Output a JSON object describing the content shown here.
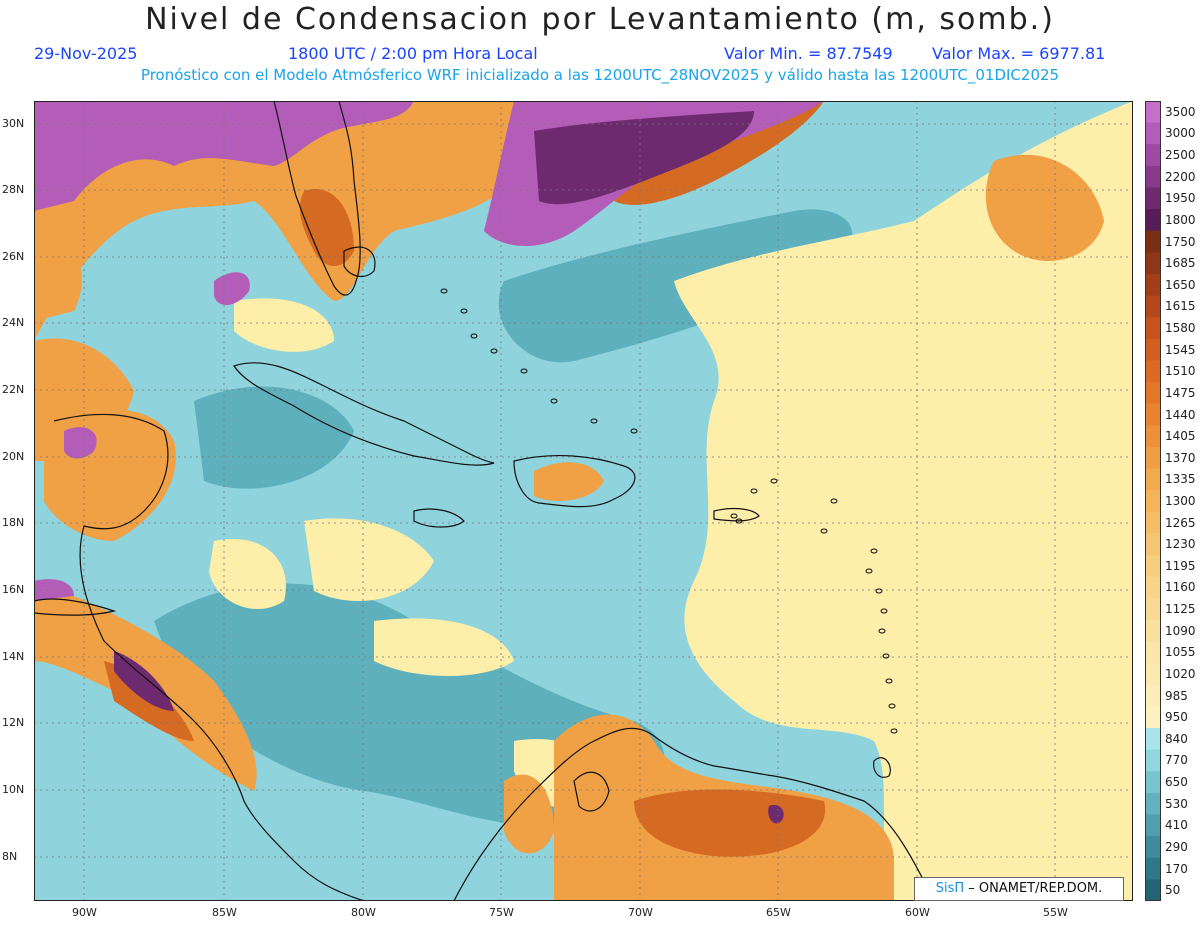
{
  "header": {
    "title": "Nivel de Condensacion por Levantamiento (m, somb.)",
    "date": "29-Nov-2025",
    "time": "1800 UTC / 2:00 pm Hora Local",
    "valmin": "Valor Min. = 87.7549",
    "valmax": "Valor Max. = 6977.81",
    "model_info": "Pronóstico con el Modelo Atmósferico WRF inicializado a las 1200UTC_28NOV2025 y válido hasta las  1200UTC_01DIC2025"
  },
  "axes": {
    "lon_labels": [
      "90W",
      "85W",
      "80W",
      "75W",
      "70W",
      "65W",
      "60W",
      "55W"
    ],
    "lat_labels": [
      "30N",
      "28N",
      "26N",
      "24N",
      "22N",
      "20N",
      "18N",
      "16N",
      "14N",
      "12N",
      "10N",
      "8N"
    ]
  },
  "colorbar": {
    "labels": [
      "3500",
      "3000",
      "2500",
      "2200",
      "1950",
      "1800",
      "1750",
      "1685",
      "1650",
      "1615",
      "1580",
      "1545",
      "1510",
      "1475",
      "1440",
      "1405",
      "1370",
      "1335",
      "1300",
      "1265",
      "1230",
      "1195",
      "1160",
      "1125",
      "1090",
      "1055",
      "1020",
      "985",
      "950",
      "840",
      "770",
      "650",
      "530",
      "410",
      "290",
      "170",
      "50"
    ],
    "colors": [
      "#c66fc8",
      "#b45db8",
      "#9e4aa3",
      "#873a8a",
      "#6e2a6f",
      "#571c58",
      "#7a2e14",
      "#8e3616",
      "#a33f18",
      "#b5481a",
      "#c6531c",
      "#d25e1f",
      "#db6a24",
      "#e2772a",
      "#e88431",
      "#ec9139",
      "#ef9e43",
      "#f2aa4e",
      "#f4b45a",
      "#f5bd66",
      "#f6c572",
      "#f7cd7e",
      "#f8d489",
      "#f9da94",
      "#fae09e",
      "#fbe5a8",
      "#fce9b0",
      "#fdedb8",
      "#fef1c0",
      "#a7e5ea",
      "#90d6de",
      "#78c4cf",
      "#62b2bf",
      "#4f9fae",
      "#3e8c9c",
      "#2f7888",
      "#236474"
    ],
    "colors_are_bottom_to_top": false
  },
  "credit": {
    "brand": "SisΠ",
    "text": " – ONAMET/REP.DOM."
  },
  "map_colors": {
    "ocean": "#8fd3dc",
    "ocean_deep": "#5fb0bd",
    "pale_yellow": "#fdeeaa",
    "orange": "#f0a045",
    "dark_orange": "#d56a22",
    "purple": "#b45db8",
    "dark_purple": "#6e2a6f",
    "coast": "#111111"
  }
}
